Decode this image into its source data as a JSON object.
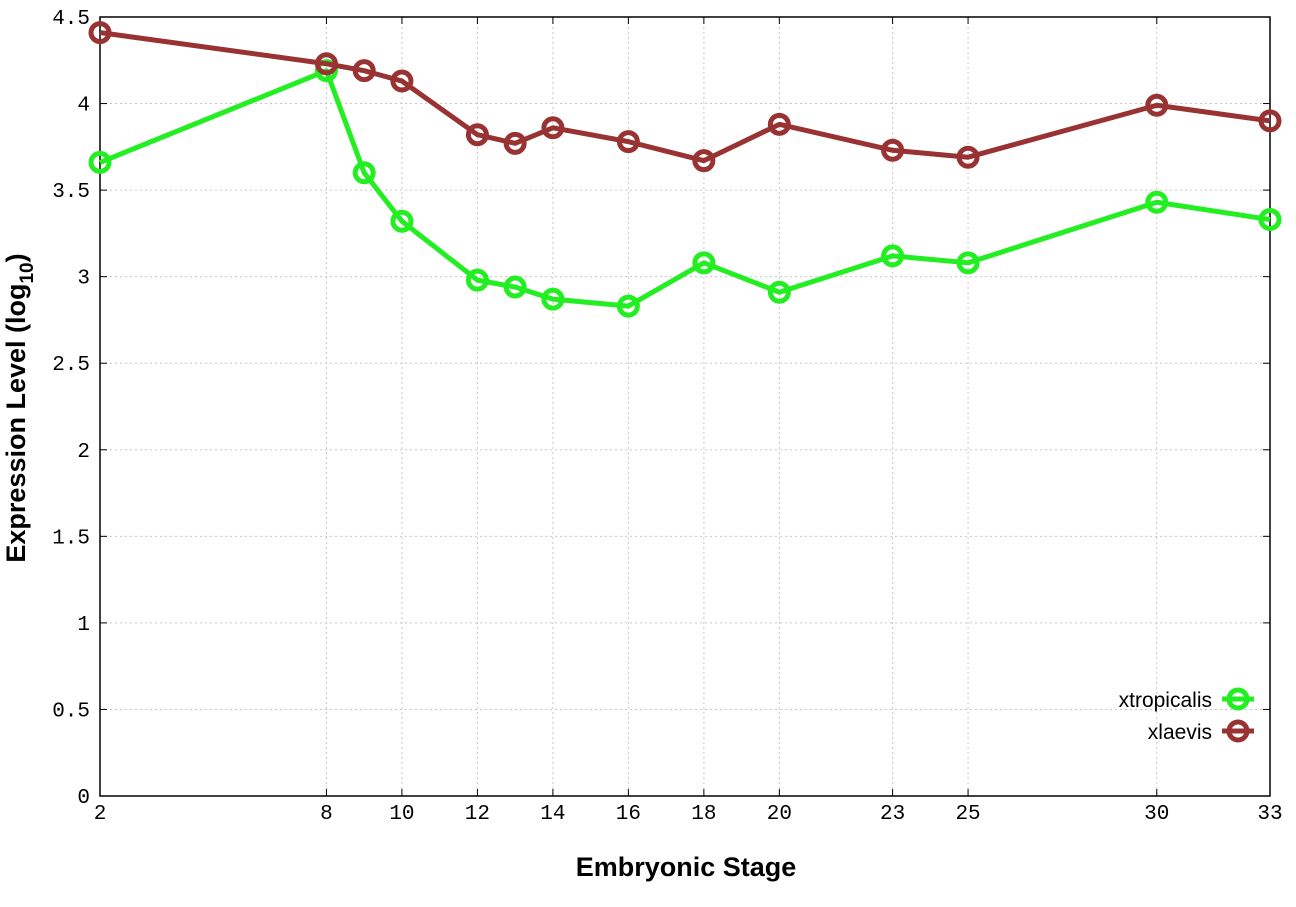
{
  "chart_data": {
    "type": "line",
    "title": "",
    "xlabel": "Embryonic Stage",
    "ylabel": "Expression Level (log",
    "ylabel_subscript": "10",
    "ylabel_suffix": ")",
    "xlim": [
      2,
      33
    ],
    "ylim": [
      0,
      4.5
    ],
    "x_ticks": [
      2,
      8,
      10,
      12,
      14,
      16,
      18,
      20,
      23,
      25,
      30,
      33
    ],
    "y_ticks": [
      0,
      0.5,
      1,
      1.5,
      2,
      2.5,
      3,
      3.5,
      4,
      4.5
    ],
    "y_tick_labels": [
      "0",
      "0.5",
      "1",
      "1.5",
      "2",
      "2.5",
      "3",
      "3.5",
      "4",
      "4.5"
    ],
    "grid": true,
    "legend_position": "bottom-right",
    "series": [
      {
        "name": "xtropicalis",
        "color": "#22ee22",
        "x": [
          2,
          8,
          9,
          10,
          12,
          13,
          14,
          16,
          18,
          20,
          23,
          25,
          30,
          33
        ],
        "y": [
          3.66,
          4.19,
          3.6,
          3.32,
          2.98,
          2.94,
          2.87,
          2.83,
          3.08,
          2.91,
          3.12,
          3.08,
          3.43,
          3.33
        ]
      },
      {
        "name": "xlaevis",
        "color": "#993333",
        "x": [
          2,
          8,
          9,
          10,
          12,
          13,
          14,
          16,
          18,
          20,
          23,
          25,
          30,
          33
        ],
        "y": [
          4.41,
          4.23,
          4.19,
          4.13,
          3.82,
          3.77,
          3.86,
          3.78,
          3.67,
          3.88,
          3.73,
          3.69,
          3.99,
          3.9
        ]
      }
    ]
  }
}
